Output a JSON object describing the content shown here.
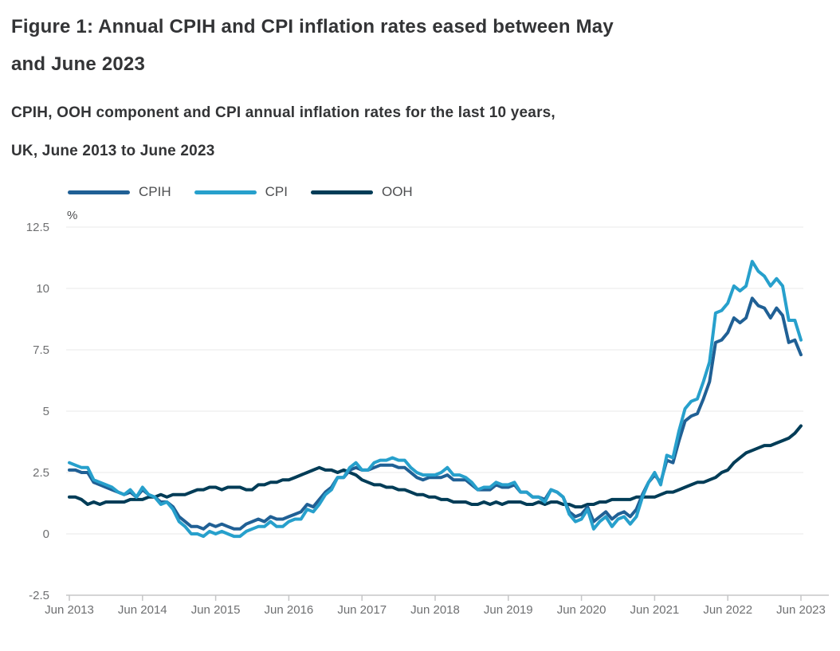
{
  "title": {
    "lines": [
      "Figure 1: Annual CPIH and CPI inflation rates eased between May",
      "and June 2023"
    ]
  },
  "subtitle": {
    "lines": [
      "CPIH, OOH component and CPI annual inflation rates for the last 10 years,",
      "UK, June 2013 to June 2023"
    ]
  },
  "legend": [
    {
      "label": "CPIH",
      "color": "#206095"
    },
    {
      "label": "CPI",
      "color": "#27A0CC"
    },
    {
      "label": "OOH",
      "color": "#003C57"
    }
  ],
  "y_axis": {
    "unit_label": "%",
    "ticks": [
      12.5,
      10,
      7.5,
      5,
      2.5,
      0,
      -2.5
    ]
  },
  "x_axis": {
    "tick_labels": [
      "Jun 2013",
      "Jun 2014",
      "Jun 2015",
      "Jun 2016",
      "Jun 2017",
      "Jun 2018",
      "Jun 2019",
      "Jun 2020",
      "Jun 2021",
      "Jun 2022",
      "Jun 2023"
    ]
  },
  "colors": {
    "cpih": "#206095",
    "cpi": "#27A0CC",
    "ooh": "#003C57",
    "gridline": "#e8e8e9",
    "axis": "#c5c6c7",
    "tick_text": "#6e6f71",
    "heading_text": "#333436"
  },
  "chart_data": {
    "type": "line",
    "title": "Figure 1: Annual CPIH and CPI inflation rates eased between May and June 2023",
    "subtitle": "CPIH, OOH component and CPI annual inflation rates for the last 10 years, UK, June 2013 to June 2023",
    "unit": "%",
    "x_start": "Jun 2013",
    "x_end": "Jun 2023",
    "x_frequency": "monthly",
    "x_tick_labels": [
      "Jun 2013",
      "Jun 2014",
      "Jun 2015",
      "Jun 2016",
      "Jun 2017",
      "Jun 2018",
      "Jun 2019",
      "Jun 2020",
      "Jun 2021",
      "Jun 2022",
      "Jun 2023"
    ],
    "ylim": [
      -2.5,
      12.5
    ],
    "y_ticks": [
      12.5,
      10,
      7.5,
      5,
      2.5,
      0,
      -2.5
    ],
    "grid": "horizontal",
    "legend_position": "top",
    "series": [
      {
        "name": "CPIH",
        "color": "#206095",
        "values": [
          2.6,
          2.6,
          2.5,
          2.5,
          2.1,
          2.0,
          1.9,
          1.8,
          1.7,
          1.6,
          1.7,
          1.5,
          1.8,
          1.6,
          1.5,
          1.3,
          1.3,
          1.1,
          0.7,
          0.5,
          0.3,
          0.3,
          0.2,
          0.4,
          0.3,
          0.4,
          0.3,
          0.2,
          0.2,
          0.4,
          0.5,
          0.6,
          0.5,
          0.7,
          0.6,
          0.6,
          0.7,
          0.8,
          0.9,
          1.2,
          1.1,
          1.4,
          1.7,
          1.9,
          2.3,
          2.3,
          2.6,
          2.7,
          2.6,
          2.6,
          2.7,
          2.8,
          2.8,
          2.8,
          2.7,
          2.7,
          2.5,
          2.3,
          2.2,
          2.3,
          2.3,
          2.3,
          2.4,
          2.2,
          2.2,
          2.2,
          2.0,
          1.8,
          1.8,
          1.8,
          2.0,
          1.9,
          1.9,
          2.0,
          1.7,
          1.7,
          1.5,
          1.5,
          1.4,
          1.8,
          1.7,
          1.5,
          0.9,
          0.7,
          0.8,
          1.1,
          0.5,
          0.7,
          0.9,
          0.6,
          0.8,
          0.9,
          0.7,
          1.0,
          1.6,
          2.1,
          2.4,
          2.1,
          3.0,
          2.9,
          3.8,
          4.6,
          4.8,
          4.9,
          5.5,
          6.2,
          7.8,
          7.9,
          8.2,
          8.8,
          8.6,
          8.8,
          9.6,
          9.3,
          9.2,
          8.8,
          9.2,
          8.9,
          7.8,
          7.9,
          7.3
        ]
      },
      {
        "name": "CPI",
        "color": "#27A0CC",
        "values": [
          2.9,
          2.8,
          2.7,
          2.7,
          2.2,
          2.1,
          2.0,
          1.9,
          1.7,
          1.6,
          1.8,
          1.5,
          1.9,
          1.6,
          1.5,
          1.2,
          1.3,
          1.0,
          0.5,
          0.3,
          0.0,
          0.0,
          -0.1,
          0.1,
          0.0,
          0.1,
          0.0,
          -0.1,
          -0.1,
          0.1,
          0.2,
          0.3,
          0.3,
          0.5,
          0.3,
          0.3,
          0.5,
          0.6,
          0.6,
          1.0,
          0.9,
          1.2,
          1.6,
          1.8,
          2.3,
          2.3,
          2.7,
          2.9,
          2.6,
          2.6,
          2.9,
          3.0,
          3.0,
          3.1,
          3.0,
          3.0,
          2.7,
          2.5,
          2.4,
          2.4,
          2.4,
          2.5,
          2.7,
          2.4,
          2.4,
          2.3,
          2.1,
          1.8,
          1.9,
          1.9,
          2.1,
          2.0,
          2.0,
          2.1,
          1.7,
          1.7,
          1.5,
          1.5,
          1.3,
          1.8,
          1.7,
          1.5,
          0.8,
          0.5,
          0.6,
          1.0,
          0.2,
          0.5,
          0.7,
          0.3,
          0.6,
          0.7,
          0.4,
          0.7,
          1.5,
          2.1,
          2.5,
          2.0,
          3.2,
          3.1,
          4.2,
          5.1,
          5.4,
          5.5,
          6.2,
          7.0,
          9.0,
          9.1,
          9.4,
          10.1,
          9.9,
          10.1,
          11.1,
          10.7,
          10.5,
          10.1,
          10.4,
          10.1,
          8.7,
          8.7,
          7.9
        ]
      },
      {
        "name": "OOH",
        "color": "#003C57",
        "values": [
          1.5,
          1.5,
          1.4,
          1.2,
          1.3,
          1.2,
          1.3,
          1.3,
          1.3,
          1.3,
          1.4,
          1.4,
          1.4,
          1.5,
          1.5,
          1.6,
          1.5,
          1.6,
          1.6,
          1.6,
          1.7,
          1.8,
          1.8,
          1.9,
          1.9,
          1.8,
          1.9,
          1.9,
          1.9,
          1.8,
          1.8,
          2.0,
          2.0,
          2.1,
          2.1,
          2.2,
          2.2,
          2.3,
          2.4,
          2.5,
          2.6,
          2.7,
          2.6,
          2.6,
          2.5,
          2.6,
          2.5,
          2.4,
          2.2,
          2.1,
          2.0,
          2.0,
          1.9,
          1.9,
          1.8,
          1.8,
          1.7,
          1.6,
          1.6,
          1.5,
          1.5,
          1.4,
          1.4,
          1.3,
          1.3,
          1.3,
          1.2,
          1.2,
          1.3,
          1.2,
          1.3,
          1.2,
          1.3,
          1.3,
          1.3,
          1.2,
          1.2,
          1.3,
          1.2,
          1.3,
          1.3,
          1.2,
          1.2,
          1.1,
          1.1,
          1.2,
          1.2,
          1.3,
          1.3,
          1.4,
          1.4,
          1.4,
          1.4,
          1.5,
          1.5,
          1.5,
          1.5,
          1.6,
          1.7,
          1.7,
          1.8,
          1.9,
          2.0,
          2.1,
          2.1,
          2.2,
          2.3,
          2.5,
          2.6,
          2.9,
          3.1,
          3.3,
          3.4,
          3.5,
          3.6,
          3.6,
          3.7,
          3.8,
          3.9,
          4.1,
          4.4
        ]
      }
    ]
  }
}
